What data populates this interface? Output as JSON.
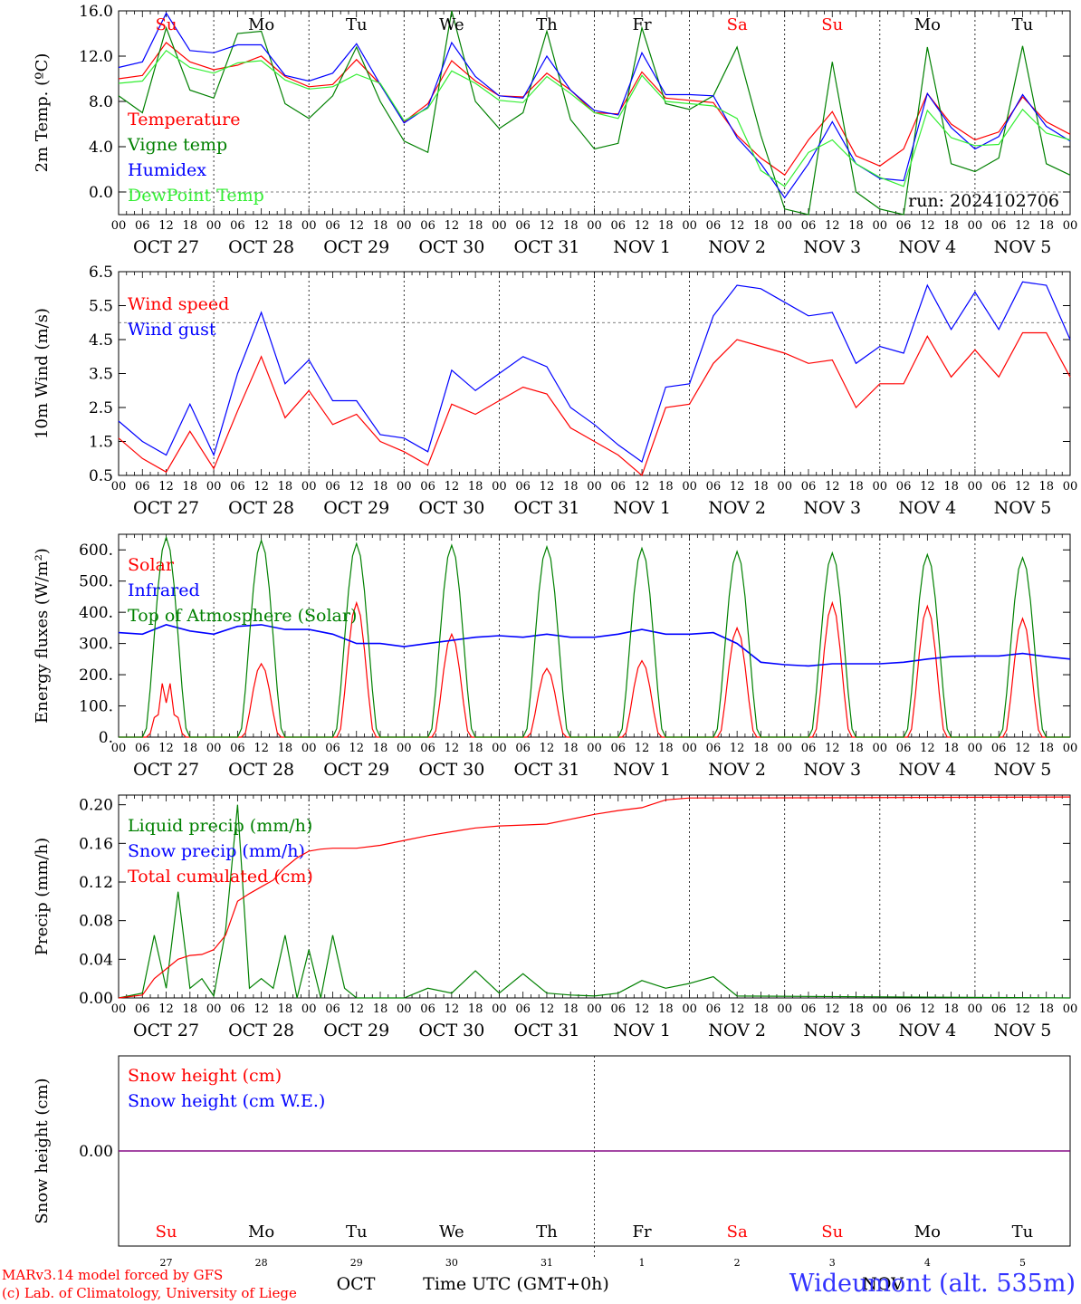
{
  "run_label": "run: 2024102706",
  "footer": {
    "credit1": "MARv3.14 model forced by GFS",
    "credit2": "(c) Lab. of Climatology, University of Liege",
    "station": "Wideumont (alt. 535m)",
    "time_label": "Time UTC (GMT+0h)",
    "month_oct": "OCT",
    "month_nov": "NOV"
  },
  "days": [
    {
      "dow": "Su",
      "date": "OCT 27",
      "num": "27",
      "weekend": true
    },
    {
      "dow": "Mo",
      "date": "OCT 28",
      "num": "28",
      "weekend": false
    },
    {
      "dow": "Tu",
      "date": "OCT 29",
      "num": "29",
      "weekend": false
    },
    {
      "dow": "We",
      "date": "OCT 30",
      "num": "30",
      "weekend": false
    },
    {
      "dow": "Th",
      "date": "OCT 31",
      "num": "31",
      "weekend": false
    },
    {
      "dow": "Fr",
      "date": "NOV  1",
      "num": "1",
      "weekend": false
    },
    {
      "dow": "Sa",
      "date": "NOV  2",
      "num": "2",
      "weekend": true
    },
    {
      "dow": "Su",
      "date": "NOV  3",
      "num": "3",
      "weekend": true
    },
    {
      "dow": "Mo",
      "date": "NOV  4",
      "num": "4",
      "weekend": false
    },
    {
      "dow": "Tu",
      "date": "NOV  5",
      "num": "5",
      "weekend": false
    }
  ],
  "hour_labels": [
    "00",
    "06",
    "12",
    "18"
  ],
  "end_hour_label": "00",
  "colors": {
    "red": "#ff0000",
    "green": "#008000",
    "blue": "#0000ff",
    "lime": "#33ee33",
    "purple": "#800080"
  },
  "chart_data": [
    {
      "type": "line",
      "ylabel": "2m Temp. (ºC)",
      "ylim": [
        -2,
        16
      ],
      "yticks": [
        "16.0",
        "12.0",
        "8.0",
        "4.0",
        "0.0"
      ],
      "ytick_values": [
        16,
        12,
        8,
        4,
        0
      ],
      "ref_line": 0,
      "x_hours": [
        0,
        6,
        12,
        18,
        24,
        30,
        36,
        42,
        48,
        54,
        60,
        66,
        72,
        78,
        84,
        90,
        96,
        102,
        108,
        114,
        120,
        126,
        132,
        138,
        144,
        150,
        156,
        162,
        168,
        174,
        180,
        186,
        192,
        198,
        204,
        210,
        216,
        222,
        228,
        234,
        240
      ],
      "series": [
        {
          "name": "Temperature",
          "color": "#ff0000",
          "values": [
            10.0,
            10.3,
            13.2,
            11.5,
            10.8,
            11.2,
            12.0,
            10.2,
            9.3,
            9.5,
            11.7,
            9.5,
            6.2,
            7.8,
            11.6,
            9.8,
            8.5,
            8.4,
            10.5,
            9.0,
            7.0,
            6.9,
            10.6,
            8.3,
            8.1,
            7.9,
            5.0,
            3.0,
            1.5,
            4.6,
            7.1,
            3.2,
            2.3,
            3.8,
            8.7,
            6.0,
            4.6,
            5.3,
            8.4,
            6.2,
            5.1
          ]
        },
        {
          "name": "Vigne temp",
          "color": "#008000",
          "values": [
            8.5,
            7.0,
            14.5,
            9.0,
            8.3,
            14.0,
            14.2,
            7.8,
            6.5,
            8.5,
            12.8,
            8.0,
            4.5,
            3.5,
            16.0,
            8.0,
            5.6,
            7.0,
            14.2,
            6.4,
            3.8,
            4.3,
            14.5,
            7.8,
            7.3,
            8.5,
            12.8,
            5.0,
            -1.5,
            -2.5,
            11.5,
            0.0,
            -1.5,
            -2.0,
            12.8,
            2.5,
            1.8,
            3.0,
            12.9,
            2.5,
            1.5
          ]
        },
        {
          "name": "Humidex",
          "color": "#0000ff",
          "values": [
            11.0,
            11.5,
            15.8,
            12.5,
            12.3,
            13.0,
            13.0,
            10.3,
            9.8,
            10.5,
            13.1,
            9.5,
            6.1,
            7.5,
            13.2,
            10.2,
            8.5,
            8.3,
            12.0,
            9.0,
            7.2,
            6.8,
            12.3,
            8.6,
            8.6,
            8.5,
            4.8,
            2.5,
            -0.5,
            2.5,
            6.2,
            2.5,
            1.2,
            1.0,
            8.7,
            5.7,
            3.8,
            4.9,
            8.6,
            5.8,
            4.5
          ]
        },
        {
          "name": "DewPoint Temp",
          "color": "#33ee33",
          "values": [
            9.6,
            9.8,
            12.5,
            11.0,
            10.5,
            11.4,
            11.6,
            9.9,
            9.1,
            9.3,
            10.4,
            9.6,
            6.3,
            7.4,
            10.7,
            9.6,
            8.1,
            7.9,
            10.2,
            8.7,
            7.0,
            6.5,
            10.3,
            8.0,
            7.8,
            7.6,
            6.5,
            1.9,
            0.5,
            3.5,
            4.6,
            2.5,
            1.3,
            0.5,
            7.2,
            4.8,
            4.1,
            4.2,
            7.3,
            5.2,
            4.6
          ]
        }
      ]
    },
    {
      "type": "line",
      "ylabel": "10m Wind (m/s)",
      "ylim": [
        0.5,
        6.5
      ],
      "yticks": [
        "6.5",
        "5.5",
        "4.5",
        "3.5",
        "2.5",
        "1.5",
        "0.5"
      ],
      "ytick_values": [
        6.5,
        5.5,
        4.5,
        3.5,
        2.5,
        1.5,
        0.5
      ],
      "ref_line": 5.0,
      "x_hours": [
        0,
        6,
        12,
        18,
        24,
        30,
        36,
        42,
        48,
        54,
        60,
        66,
        72,
        78,
        84,
        90,
        96,
        102,
        108,
        114,
        120,
        126,
        132,
        138,
        144,
        150,
        156,
        162,
        168,
        174,
        180,
        186,
        192,
        198,
        204,
        210,
        216,
        222,
        228,
        234,
        240
      ],
      "series": [
        {
          "name": "Wind speed",
          "color": "#ff0000",
          "values": [
            1.6,
            1.0,
            0.6,
            1.8,
            0.7,
            2.4,
            4.0,
            2.2,
            3.0,
            2.0,
            2.3,
            1.5,
            1.2,
            0.8,
            2.6,
            2.3,
            2.7,
            3.1,
            2.9,
            1.9,
            1.5,
            1.1,
            0.5,
            2.5,
            2.6,
            3.8,
            4.5,
            4.3,
            4.1,
            3.8,
            3.9,
            2.5,
            3.2,
            3.2,
            4.6,
            3.4,
            4.2,
            3.4,
            4.7,
            4.7,
            3.4
          ]
        },
        {
          "name": "Wind gust",
          "color": "#0000ff",
          "values": [
            2.1,
            1.5,
            1.1,
            2.6,
            1.1,
            3.5,
            5.3,
            3.2,
            3.9,
            2.7,
            2.7,
            1.7,
            1.6,
            1.2,
            3.6,
            3.0,
            3.5,
            4.0,
            3.7,
            2.5,
            2.0,
            1.4,
            0.9,
            3.1,
            3.2,
            5.2,
            6.1,
            6.0,
            5.6,
            5.2,
            5.3,
            3.8,
            4.3,
            4.1,
            6.1,
            4.8,
            5.9,
            4.8,
            6.2,
            6.1,
            4.5
          ]
        }
      ]
    },
    {
      "type": "line",
      "ylabel": "Energy fluxes (W/m²)",
      "ylim": [
        0,
        650
      ],
      "yticks": [
        "600.",
        "500.",
        "400.",
        "300.",
        "200.",
        "100.",
        "0."
      ],
      "ytick_values": [
        600,
        500,
        400,
        300,
        200,
        100,
        0
      ],
      "day_peaks": {
        "Solar": [
          200,
          235,
          430,
          330,
          220,
          245,
          350,
          430,
          420,
          380
        ],
        "Top of Atmosphere (Solar)": [
          640,
          630,
          620,
          615,
          610,
          605,
          595,
          590,
          585,
          575
        ]
      },
      "x_hours": [
        0,
        6,
        12,
        18,
        24,
        30,
        36,
        42,
        48,
        54,
        60,
        66,
        72,
        78,
        84,
        90,
        96,
        102,
        108,
        114,
        120,
        126,
        132,
        138,
        144,
        150,
        156,
        162,
        168,
        174,
        180,
        186,
        192,
        198,
        204,
        210,
        216,
        222,
        228,
        234,
        240
      ],
      "series": [
        {
          "name": "Solar",
          "color": "#ff0000",
          "values": []
        },
        {
          "name": "Infrared",
          "color": "#0000ff",
          "values": [
            335,
            330,
            360,
            340,
            330,
            355,
            360,
            345,
            345,
            330,
            300,
            300,
            290,
            300,
            310,
            320,
            325,
            320,
            330,
            320,
            320,
            330,
            345,
            330,
            330,
            335,
            300,
            240,
            232,
            228,
            235,
            235,
            235,
            240,
            250,
            258,
            260,
            260,
            268,
            258,
            250
          ]
        },
        {
          "name": "Top of Atmosphere (Solar)",
          "color": "#008000",
          "values": []
        }
      ]
    },
    {
      "type": "line",
      "ylabel": "Precip (mm/h)",
      "ylim": [
        0,
        0.21
      ],
      "yticks": [
        "0.20",
        "0.16",
        "0.12",
        "0.08",
        "0.04",
        "0.00"
      ],
      "ytick_values": [
        0.2,
        0.16,
        0.12,
        0.08,
        0.04,
        0.0
      ],
      "x_hours": [
        0,
        6,
        9,
        12,
        15,
        18,
        21,
        24,
        27,
        30,
        33,
        36,
        39,
        42,
        45,
        48,
        51,
        54,
        57,
        60,
        66,
        72,
        78,
        84,
        90,
        96,
        102,
        108,
        114,
        120,
        126,
        132,
        138,
        144,
        150,
        156,
        240
      ],
      "series": [
        {
          "name": "Liquid precip (mm/h)",
          "color": "#008000",
          "values": [
            0.0,
            0.005,
            0.065,
            0.01,
            0.11,
            0.01,
            0.02,
            0.002,
            0.07,
            0.2,
            0.01,
            0.02,
            0.01,
            0.065,
            0.0,
            0.05,
            0.0,
            0.065,
            0.01,
            0.0,
            0.0,
            0.0,
            0.01,
            0.005,
            0.028,
            0.005,
            0.025,
            0.005,
            0.003,
            0.002,
            0.005,
            0.018,
            0.01,
            0.015,
            0.022,
            0.002,
            0.0
          ]
        },
        {
          "name": "Snow precip (mm/h)",
          "color": "#0000ff",
          "values": []
        },
        {
          "name": "Total cumulated (cm)",
          "color": "#ff0000",
          "values": [
            0.0,
            0.003,
            0.02,
            0.03,
            0.04,
            0.044,
            0.045,
            0.05,
            0.065,
            0.1,
            0.108,
            0.115,
            0.122,
            0.135,
            0.145,
            0.152,
            0.154,
            0.155,
            0.155,
            0.155,
            0.158,
            0.163,
            0.168,
            0.172,
            0.176,
            0.178,
            0.179,
            0.18,
            0.185,
            0.19,
            0.194,
            0.197,
            0.205,
            0.207,
            0.207,
            0.207,
            0.208
          ]
        }
      ]
    },
    {
      "type": "line",
      "ylabel": "Snow height (cm)",
      "ylim": [
        -1,
        1
      ],
      "yticks": [
        "0.00"
      ],
      "ytick_values": [
        0
      ],
      "x_hours": [
        0,
        240
      ],
      "series": [
        {
          "name": "Snow height (cm)",
          "color": "#ff0000",
          "values": [
            0,
            0
          ]
        },
        {
          "name": "Snow height (cm W.E.)",
          "color": "#0000ff",
          "values": [
            0,
            0
          ]
        }
      ]
    }
  ]
}
